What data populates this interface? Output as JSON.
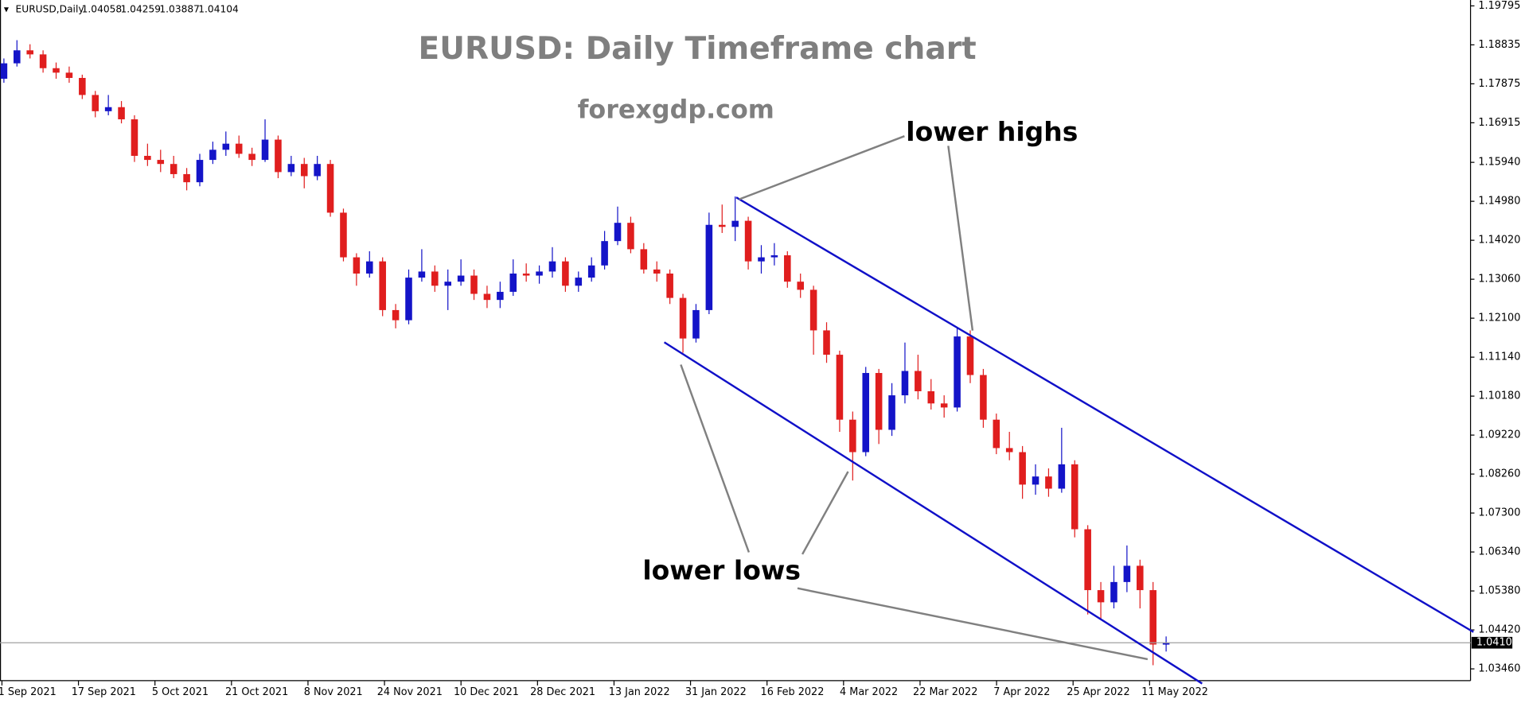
{
  "chart_data": {
    "type": "candlestick",
    "symbol": "EURUSD,Daily",
    "title": "EURUSD: Daily Timeframe chart",
    "subtitle": "forexgdp.com",
    "annotations": [
      "lower highs",
      "lower lows"
    ],
    "up_color": "#1414c8",
    "down_color": "#e01e1e",
    "ylim": [
      1.0317,
      1.1994
    ],
    "yticks": [
      1.19795,
      1.18835,
      1.17875,
      1.16915,
      {
        "value": 1.1594,
        "label": "1.15940"
      },
      {
        "value": 1.1498,
        "label": "1.14980"
      },
      {
        "value": 1.1402,
        "label": "1.14020"
      },
      {
        "value": 1.1306,
        "label": "1.13060"
      },
      {
        "value": 1.121,
        "label": "1.12100"
      },
      {
        "value": 1.1114,
        "label": "1.11140"
      },
      {
        "value": 1.1018,
        "label": "1.10180"
      },
      {
        "value": 1.0922,
        "label": "1.09220"
      },
      {
        "value": 1.0826,
        "label": "1.08260"
      },
      {
        "value": 1.073,
        "label": "1.07300"
      },
      {
        "value": 1.0634,
        "label": "1.06340"
      },
      {
        "value": 1.0538,
        "label": "1.05380"
      },
      {
        "value": 1.0442,
        "label": "1.04420"
      },
      {
        "value": 1.0346,
        "label": "1.03460"
      }
    ],
    "x_labels": [
      "1 Sep 2021",
      "17 Sep 2021",
      "5 Oct 2021",
      "21 Oct 2021",
      "8 Nov 2021",
      "24 Nov 2021",
      "10 Dec 2021",
      "28 Dec 2021",
      "13 Jan 2022",
      "31 Jan 2022",
      "16 Feb 2022",
      "4 Mar 2022",
      "22 Mar 2022",
      "7 Apr 2022",
      "25 Apr 2022",
      "11 May 2022"
    ],
    "ohlc": [
      [
        1.18,
        1.185,
        1.179,
        1.1838
      ],
      [
        1.1838,
        1.1895,
        1.183,
        1.187
      ],
      [
        1.187,
        1.1885,
        1.185,
        1.186
      ],
      [
        1.186,
        1.187,
        1.1815,
        1.1826
      ],
      [
        1.1826,
        1.184,
        1.18,
        1.1815
      ],
      [
        1.1815,
        1.183,
        1.179,
        1.1802
      ],
      [
        1.1802,
        1.181,
        1.175,
        1.176
      ],
      [
        1.176,
        1.177,
        1.1705,
        1.172
      ],
      [
        1.172,
        1.176,
        1.171,
        1.173
      ],
      [
        1.173,
        1.1745,
        1.169,
        1.17
      ],
      [
        1.17,
        1.171,
        1.1595,
        1.161
      ],
      [
        1.161,
        1.164,
        1.1585,
        1.16
      ],
      [
        1.16,
        1.1625,
        1.157,
        1.159
      ],
      [
        1.159,
        1.161,
        1.1555,
        1.1565
      ],
      [
        1.1565,
        1.158,
        1.1525,
        1.1545
      ],
      [
        1.1545,
        1.1615,
        1.1535,
        1.16
      ],
      [
        1.16,
        1.1645,
        1.159,
        1.1625
      ],
      [
        1.1625,
        1.167,
        1.161,
        1.164
      ],
      [
        1.164,
        1.166,
        1.1605,
        1.1615
      ],
      [
        1.1615,
        1.163,
        1.1585,
        1.16
      ],
      [
        1.16,
        1.17,
        1.1595,
        1.165
      ],
      [
        1.165,
        1.166,
        1.1555,
        1.157
      ],
      [
        1.157,
        1.161,
        1.156,
        1.159
      ],
      [
        1.159,
        1.1605,
        1.153,
        1.156
      ],
      [
        1.156,
        1.161,
        1.155,
        1.159
      ],
      [
        1.159,
        1.16,
        1.146,
        1.147
      ],
      [
        1.147,
        1.148,
        1.135,
        1.136
      ],
      [
        1.136,
        1.137,
        1.129,
        1.132
      ],
      [
        1.132,
        1.1375,
        1.131,
        1.135
      ],
      [
        1.135,
        1.136,
        1.1215,
        1.123
      ],
      [
        1.123,
        1.1245,
        1.1185,
        1.1205
      ],
      [
        1.1205,
        1.133,
        1.1195,
        1.131
      ],
      [
        1.131,
        1.138,
        1.13,
        1.1325
      ],
      [
        1.1325,
        1.134,
        1.1275,
        1.129
      ],
      [
        1.129,
        1.133,
        1.123,
        1.13
      ],
      [
        1.13,
        1.1355,
        1.129,
        1.1315
      ],
      [
        1.1315,
        1.133,
        1.1255,
        1.127
      ],
      [
        1.127,
        1.129,
        1.1235,
        1.1255
      ],
      [
        1.1255,
        1.13,
        1.1235,
        1.1275
      ],
      [
        1.1275,
        1.1355,
        1.1265,
        1.132
      ],
      [
        1.132,
        1.1345,
        1.13,
        1.1315
      ],
      [
        1.1315,
        1.134,
        1.1295,
        1.1325
      ],
      [
        1.1325,
        1.1385,
        1.131,
        1.135
      ],
      [
        1.135,
        1.136,
        1.1275,
        1.129
      ],
      [
        1.129,
        1.1325,
        1.1275,
        1.131
      ],
      [
        1.131,
        1.136,
        1.13,
        1.134
      ],
      [
        1.134,
        1.1425,
        1.133,
        1.14
      ],
      [
        1.14,
        1.1485,
        1.139,
        1.1445
      ],
      [
        1.1445,
        1.146,
        1.137,
        1.138
      ],
      [
        1.138,
        1.1395,
        1.132,
        1.133
      ],
      [
        1.133,
        1.135,
        1.13,
        1.132
      ],
      [
        1.132,
        1.133,
        1.1245,
        1.126
      ],
      [
        1.126,
        1.127,
        1.1125,
        1.116
      ],
      [
        1.116,
        1.1245,
        1.115,
        1.123
      ],
      [
        1.123,
        1.147,
        1.122,
        1.144
      ],
      [
        1.144,
        1.149,
        1.142,
        1.1435
      ],
      [
        1.1435,
        1.151,
        1.14,
        1.145
      ],
      [
        1.145,
        1.146,
        1.133,
        1.135
      ],
      [
        1.135,
        1.139,
        1.132,
        1.136
      ],
      [
        1.136,
        1.1395,
        1.134,
        1.1365
      ],
      [
        1.1365,
        1.1375,
        1.1285,
        1.13
      ],
      [
        1.13,
        1.132,
        1.126,
        1.128
      ],
      [
        1.128,
        1.129,
        1.112,
        1.118
      ],
      [
        1.118,
        1.12,
        1.11,
        1.112
      ],
      [
        1.112,
        1.113,
        1.093,
        1.096
      ],
      [
        1.096,
        1.098,
        1.081,
        1.088
      ],
      [
        1.088,
        1.109,
        1.087,
        1.1075
      ],
      [
        1.1075,
        1.1085,
        1.09,
        1.0935
      ],
      [
        1.0935,
        1.105,
        1.092,
        1.102
      ],
      [
        1.102,
        1.115,
        1.1,
        1.108
      ],
      [
        1.108,
        1.112,
        1.101,
        1.103
      ],
      [
        1.103,
        1.106,
        1.0985,
        1.1
      ],
      [
        1.1,
        1.102,
        1.0965,
        1.099
      ],
      [
        1.099,
        1.1185,
        1.098,
        1.1165
      ],
      [
        1.1165,
        1.118,
        1.105,
        1.107
      ],
      [
        1.107,
        1.1085,
        1.094,
        1.096
      ],
      [
        1.096,
        1.0975,
        1.0875,
        1.089
      ],
      [
        1.089,
        1.093,
        1.086,
        1.088
      ],
      [
        1.088,
        1.0895,
        1.0765,
        1.08
      ],
      [
        1.08,
        1.085,
        1.0775,
        1.082
      ],
      [
        1.082,
        1.084,
        1.077,
        1.079
      ],
      [
        1.079,
        1.094,
        1.078,
        1.085
      ],
      [
        1.085,
        1.086,
        1.067,
        1.069
      ],
      [
        1.069,
        1.07,
        1.048,
        1.054
      ],
      [
        1.054,
        1.056,
        1.047,
        1.051
      ],
      [
        1.051,
        1.06,
        1.0495,
        1.056
      ],
      [
        1.056,
        1.065,
        1.0535,
        1.06
      ],
      [
        1.06,
        1.0615,
        1.0495,
        1.054
      ],
      [
        1.054,
        1.056,
        1.0355,
        1.0406
      ],
      [
        1.04058,
        1.04259,
        1.03887,
        1.04104
      ]
    ]
  }
}
